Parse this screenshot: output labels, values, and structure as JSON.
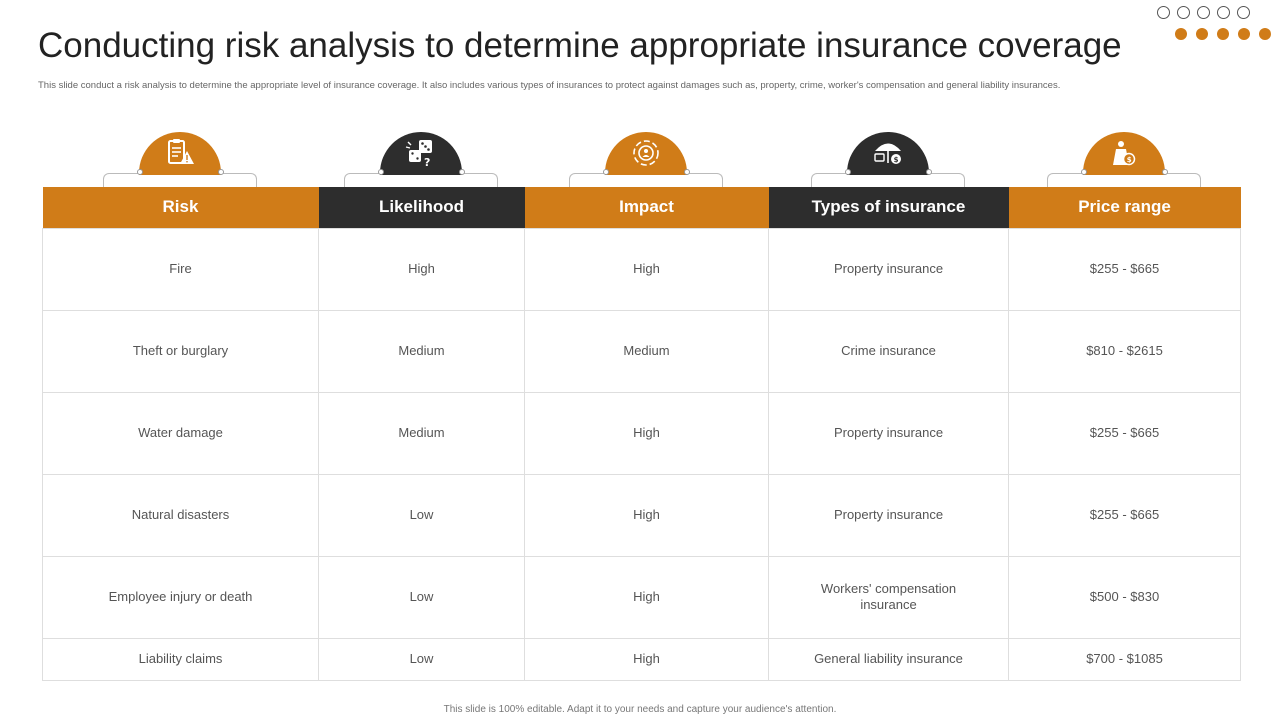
{
  "title": "Conducting risk analysis to determine appropriate insurance coverage",
  "subtitle": "This slide conduct a risk analysis to determine  the appropriate level of insurance coverage. It also includes various types of insurances to protect against damages such as, property, crime,  worker's compensation and general liability  insurances.",
  "footer": "This slide is 100% editable.  Adapt it to your needs and capture your audience's attention.",
  "colors": {
    "accent": "#d07c18",
    "dark": "#2d2d2d"
  },
  "icons": [
    "checklist-warning-icon",
    "dice-question-icon",
    "impact-target-icon",
    "umbrella-money-icon",
    "price-tag-icon"
  ],
  "table": {
    "headers": [
      "Risk",
      "Likelihood",
      "Impact",
      "Types of insurance",
      "Price range"
    ],
    "rows": [
      [
        "Fire",
        "High",
        "High",
        "Property insurance",
        "$255 - $665"
      ],
      [
        "Theft  or burglary",
        "Medium",
        "Medium",
        "Crime insurance",
        "$810 - $2615"
      ],
      [
        "Water damage",
        "Medium",
        "High",
        "Property insurance",
        "$255 - $665"
      ],
      [
        "Natural disasters",
        "Low",
        "High",
        "Property insurance",
        "$255 - $665"
      ],
      [
        "Employee injury or death",
        "Low",
        "High",
        "Workers' compensation insurance",
        "$500 - $830"
      ],
      [
        "Liability claims",
        "Low",
        "High",
        "General  liability insurance",
        "$700 - $1085"
      ]
    ]
  }
}
